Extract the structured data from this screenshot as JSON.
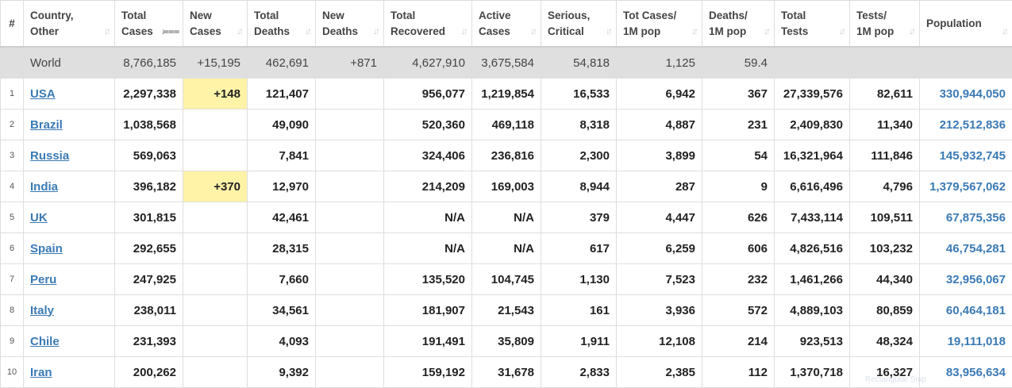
{
  "columns": [
    {
      "label": "#"
    },
    {
      "label": "Country,\nOther"
    },
    {
      "label": "Total\nCases"
    },
    {
      "label": "New\nCases"
    },
    {
      "label": "Total\nDeaths"
    },
    {
      "label": "New\nDeaths"
    },
    {
      "label": "Total\nRecovered"
    },
    {
      "label": "Active\nCases"
    },
    {
      "label": "Serious,\nCritical"
    },
    {
      "label": "Tot Cases/\n1M pop"
    },
    {
      "label": "Deaths/\n1M pop"
    },
    {
      "label": "Total\nTests"
    },
    {
      "label": "Tests/\n1M pop"
    },
    {
      "label": "Population"
    }
  ],
  "sort": {
    "active_column": "Total Cases",
    "direction": "descending"
  },
  "world": {
    "country": "World",
    "total_cases": "8,766,185",
    "new_cases": "+15,195",
    "total_deaths": "462,691",
    "new_deaths": "+871",
    "total_recovered": "4,627,910",
    "active_cases": "3,675,584",
    "serious": "54,818",
    "cases_per_1m": "1,125",
    "deaths_per_1m": "59.4",
    "total_tests": "",
    "tests_per_1m": "",
    "population": ""
  },
  "rows": [
    {
      "rank": "1",
      "country": "USA",
      "total_cases": "2,297,338",
      "new_cases": "+148",
      "total_deaths": "121,407",
      "new_deaths": "",
      "total_recovered": "956,077",
      "active_cases": "1,219,854",
      "serious": "16,533",
      "cases_per_1m": "6,942",
      "deaths_per_1m": "367",
      "total_tests": "27,339,576",
      "tests_per_1m": "82,611",
      "population": "330,944,050"
    },
    {
      "rank": "2",
      "country": "Brazil",
      "total_cases": "1,038,568",
      "new_cases": "",
      "total_deaths": "49,090",
      "new_deaths": "",
      "total_recovered": "520,360",
      "active_cases": "469,118",
      "serious": "8,318",
      "cases_per_1m": "4,887",
      "deaths_per_1m": "231",
      "total_tests": "2,409,830",
      "tests_per_1m": "11,340",
      "population": "212,512,836"
    },
    {
      "rank": "3",
      "country": "Russia",
      "total_cases": "569,063",
      "new_cases": "",
      "total_deaths": "7,841",
      "new_deaths": "",
      "total_recovered": "324,406",
      "active_cases": "236,816",
      "serious": "2,300",
      "cases_per_1m": "3,899",
      "deaths_per_1m": "54",
      "total_tests": "16,321,964",
      "tests_per_1m": "111,846",
      "population": "145,932,745"
    },
    {
      "rank": "4",
      "country": "India",
      "total_cases": "396,182",
      "new_cases": "+370",
      "total_deaths": "12,970",
      "new_deaths": "",
      "total_recovered": "214,209",
      "active_cases": "169,003",
      "serious": "8,944",
      "cases_per_1m": "287",
      "deaths_per_1m": "9",
      "total_tests": "6,616,496",
      "tests_per_1m": "4,796",
      "population": "1,379,567,062"
    },
    {
      "rank": "5",
      "country": "UK",
      "total_cases": "301,815",
      "new_cases": "",
      "total_deaths": "42,461",
      "new_deaths": "",
      "total_recovered": "N/A",
      "active_cases": "N/A",
      "serious": "379",
      "cases_per_1m": "4,447",
      "deaths_per_1m": "626",
      "total_tests": "7,433,114",
      "tests_per_1m": "109,511",
      "population": "67,875,356"
    },
    {
      "rank": "6",
      "country": "Spain",
      "total_cases": "292,655",
      "new_cases": "",
      "total_deaths": "28,315",
      "new_deaths": "",
      "total_recovered": "N/A",
      "active_cases": "N/A",
      "serious": "617",
      "cases_per_1m": "6,259",
      "deaths_per_1m": "606",
      "total_tests": "4,826,516",
      "tests_per_1m": "103,232",
      "population": "46,754,281"
    },
    {
      "rank": "7",
      "country": "Peru",
      "total_cases": "247,925",
      "new_cases": "",
      "total_deaths": "7,660",
      "new_deaths": "",
      "total_recovered": "135,520",
      "active_cases": "104,745",
      "serious": "1,130",
      "cases_per_1m": "7,523",
      "deaths_per_1m": "232",
      "total_tests": "1,461,266",
      "tests_per_1m": "44,340",
      "population": "32,956,067"
    },
    {
      "rank": "8",
      "country": "Italy",
      "total_cases": "238,011",
      "new_cases": "",
      "total_deaths": "34,561",
      "new_deaths": "",
      "total_recovered": "181,907",
      "active_cases": "21,543",
      "serious": "161",
      "cases_per_1m": "3,936",
      "deaths_per_1m": "572",
      "total_tests": "4,889,103",
      "tests_per_1m": "80,859",
      "population": "60,464,181"
    },
    {
      "rank": "9",
      "country": "Chile",
      "total_cases": "231,393",
      "new_cases": "",
      "total_deaths": "4,093",
      "new_deaths": "",
      "total_recovered": "191,491",
      "active_cases": "35,809",
      "serious": "1,911",
      "cases_per_1m": "12,108",
      "deaths_per_1m": "214",
      "total_tests": "923,513",
      "tests_per_1m": "48,324",
      "population": "19,111,018"
    },
    {
      "rank": "10",
      "country": "Iran",
      "total_cases": "200,262",
      "new_cases": "",
      "total_deaths": "9,392",
      "new_deaths": "",
      "total_recovered": "159,192",
      "active_cases": "31,678",
      "serious": "2,833",
      "cases_per_1m": "2,385",
      "deaths_per_1m": "112",
      "total_tests": "1,370,718",
      "tests_per_1m": "16,327",
      "population": "83,956,634"
    }
  ],
  "colors": {
    "link": "#3a7ab5",
    "highlight": "#fff3a8",
    "world_row": "#dfdfdf"
  },
  "overlay": {
    "text": "Rectangular Snip"
  }
}
